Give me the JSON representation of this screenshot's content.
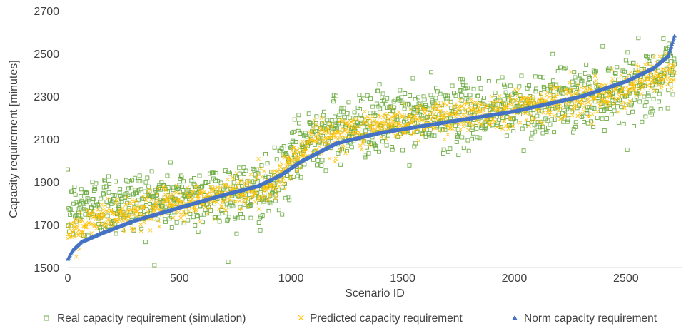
{
  "chart_data": {
    "type": "scatter",
    "title": "",
    "xlabel": "Scenario ID",
    "ylabel": "Capacity requirement [minutes]",
    "xlim": [
      0,
      2750
    ],
    "ylim": [
      1500,
      2700
    ],
    "xticks": [
      0,
      500,
      1000,
      1500,
      2000,
      2500
    ],
    "yticks": [
      1500,
      1700,
      1900,
      2100,
      2300,
      2500,
      2700
    ],
    "grid": false,
    "legend_position": "bottom",
    "n_points": 2720,
    "series": [
      {
        "name": "Real capacity requirement (simulation)",
        "marker": "square-open",
        "color": "#70AD47",
        "trend": [
          [
            0,
            1750
          ],
          [
            100,
            1790
          ],
          [
            300,
            1810
          ],
          [
            500,
            1820
          ],
          [
            700,
            1840
          ],
          [
            900,
            1850
          ],
          [
            1000,
            1990
          ],
          [
            1100,
            2130
          ],
          [
            1300,
            2170
          ],
          [
            1500,
            2190
          ],
          [
            1800,
            2220
          ],
          [
            2100,
            2260
          ],
          [
            2400,
            2310
          ],
          [
            2720,
            2400
          ]
        ],
        "spread": 75
      },
      {
        "name": "Predicted capacity requirement",
        "marker": "x",
        "color": "#FFC000",
        "trend": [
          [
            0,
            1640
          ],
          [
            100,
            1720
          ],
          [
            300,
            1760
          ],
          [
            500,
            1795
          ],
          [
            700,
            1840
          ],
          [
            900,
            1880
          ],
          [
            1000,
            1990
          ],
          [
            1100,
            2100
          ],
          [
            1300,
            2140
          ],
          [
            1500,
            2180
          ],
          [
            1800,
            2220
          ],
          [
            2100,
            2260
          ],
          [
            2400,
            2310
          ],
          [
            2720,
            2420
          ]
        ],
        "spread": 40
      },
      {
        "name": "Norm capacity requirement",
        "marker": "triangle",
        "color": "#4472C4",
        "sorted_curve": [
          [
            0,
            1540
          ],
          [
            20,
            1580
          ],
          [
            60,
            1620
          ],
          [
            150,
            1660
          ],
          [
            300,
            1720
          ],
          [
            500,
            1780
          ],
          [
            700,
            1840
          ],
          [
            850,
            1880
          ],
          [
            950,
            1930
          ],
          [
            1050,
            2000
          ],
          [
            1200,
            2080
          ],
          [
            1400,
            2130
          ],
          [
            1700,
            2180
          ],
          [
            2000,
            2230
          ],
          [
            2300,
            2300
          ],
          [
            2500,
            2370
          ],
          [
            2620,
            2430
          ],
          [
            2690,
            2490
          ],
          [
            2720,
            2590
          ]
        ]
      }
    ]
  }
}
